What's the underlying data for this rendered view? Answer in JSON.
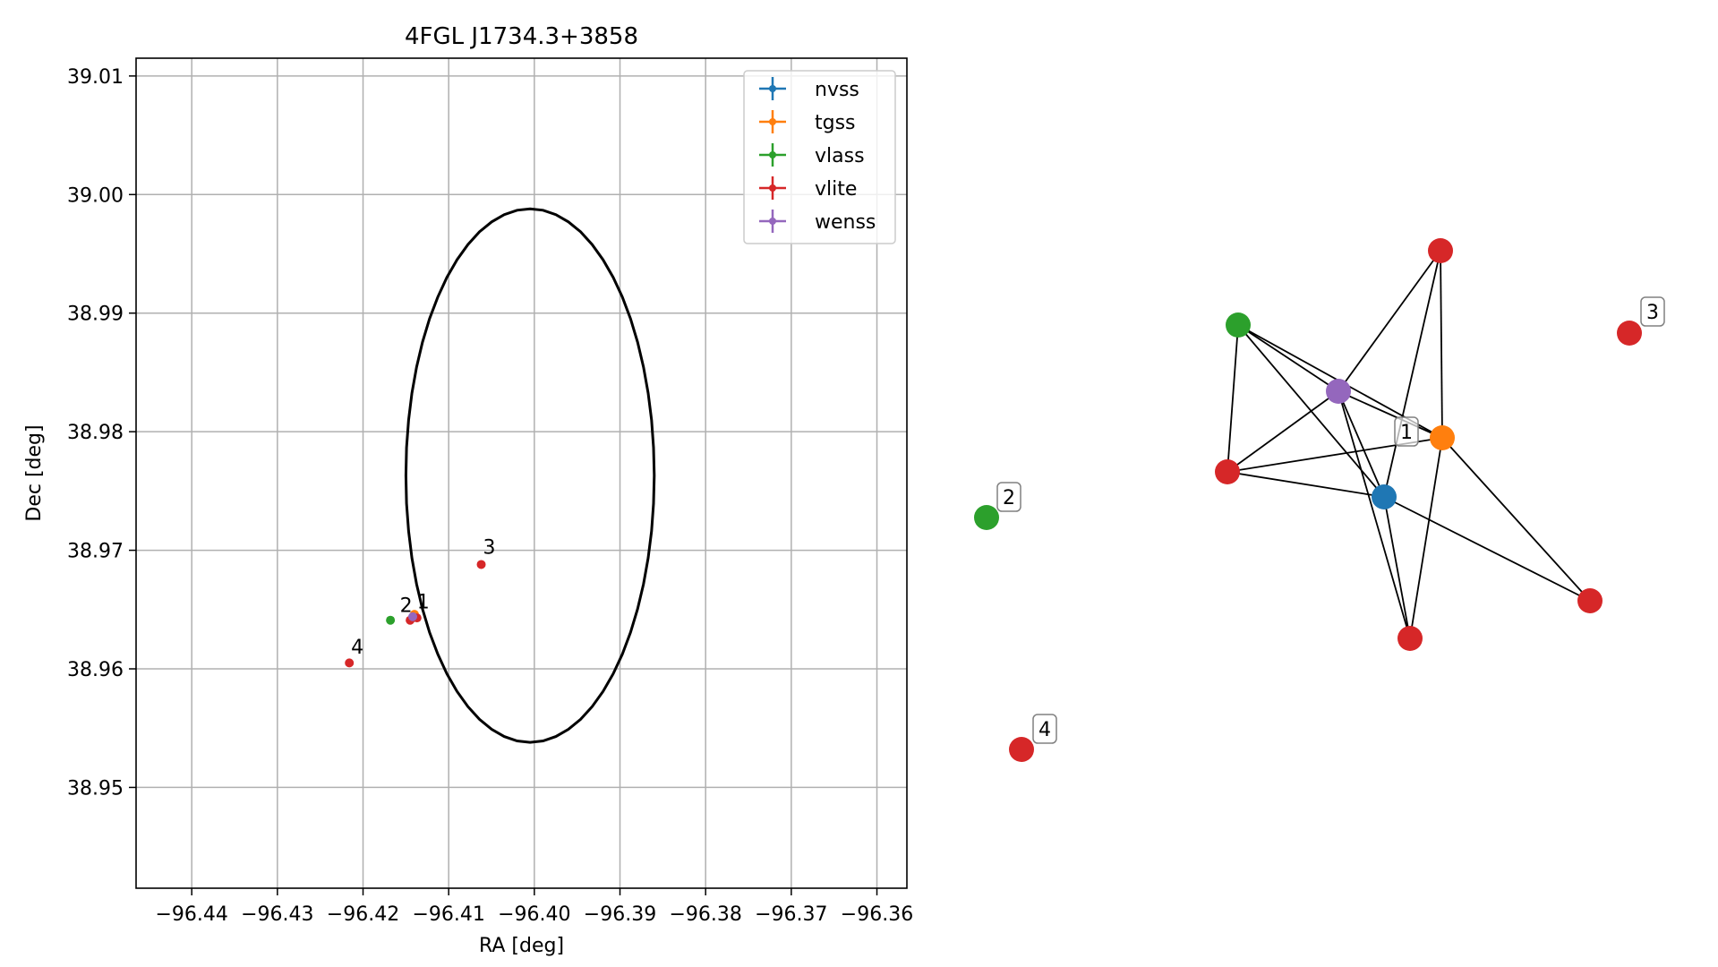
{
  "chart_data": [
    {
      "type": "scatter",
      "title": "4FGL J1734.3+3858",
      "xlabel": "RA [deg]",
      "ylabel": "Dec [deg]",
      "xlim": [
        -96.4465,
        -96.3565
      ],
      "ylim": [
        38.9415,
        39.0115
      ],
      "x_ticks": [
        -96.44,
        -96.43,
        -96.42,
        -96.41,
        -96.4,
        -96.39,
        -96.38,
        -96.37,
        -96.36
      ],
      "x_tick_labels": [
        "−96.44",
        "−96.43",
        "−96.42",
        "−96.41",
        "−96.40",
        "−96.39",
        "−96.38",
        "−96.37",
        "−96.36"
      ],
      "y_ticks": [
        38.95,
        38.96,
        38.97,
        38.98,
        38.99,
        39.0,
        39.01
      ],
      "y_tick_labels": [
        "38.95",
        "38.96",
        "38.97",
        "38.98",
        "38.99",
        "39.00",
        "39.01"
      ],
      "grid": true,
      "legend_position": "top-right",
      "ellipse": {
        "center": [
          -96.4005,
          38.9763
        ],
        "rx": 0.0145,
        "ry": 0.0225,
        "color": "#000000"
      },
      "series": [
        {
          "name": "nvss",
          "color": "#1f77b4",
          "points": [
            [
              -96.4142,
              38.9643
            ]
          ]
        },
        {
          "name": "tgss",
          "color": "#ff7f0e",
          "points": [
            [
              -96.414,
              38.9646
            ]
          ]
        },
        {
          "name": "vlass",
          "color": "#2ca02c",
          "points": [
            [
              -96.4168,
              38.9641
            ]
          ]
        },
        {
          "name": "vlite",
          "color": "#d62728",
          "points": [
            [
              -96.4137,
              38.9643
            ],
            [
              -96.4145,
              38.9641
            ],
            [
              -96.4062,
              38.9688
            ],
            [
              -96.4216,
              38.9605
            ]
          ]
        },
        {
          "name": "wenss",
          "color": "#9467bd",
          "points": [
            [
              -96.4142,
              38.9644
            ]
          ]
        }
      ],
      "annotations": [
        {
          "text": "1",
          "x": -96.4137,
          "y": 38.9651
        },
        {
          "text": "2",
          "x": -96.4157,
          "y": 38.9648
        },
        {
          "text": "3",
          "x": -96.406,
          "y": 38.9697
        },
        {
          "text": "4",
          "x": -96.4214,
          "y": 38.9613
        }
      ]
    },
    {
      "type": "network",
      "nodes": [
        {
          "id": "vlite_top",
          "color": "#d62728"
        },
        {
          "id": "vlass",
          "color": "#2ca02c"
        },
        {
          "id": "wenss",
          "color": "#9467bd"
        },
        {
          "id": "tgss",
          "color": "#ff7f0e"
        },
        {
          "id": "vlite_left",
          "color": "#d62728"
        },
        {
          "id": "nvss",
          "color": "#1f77b4"
        },
        {
          "id": "vlite_right",
          "color": "#d62728"
        },
        {
          "id": "vlite_bottom",
          "color": "#d62728"
        },
        {
          "id": "iso_3",
          "color": "#d62728"
        },
        {
          "id": "iso_2",
          "color": "#2ca02c"
        },
        {
          "id": "iso_4",
          "color": "#d62728"
        }
      ],
      "edges": [
        [
          "vlass",
          "wenss"
        ],
        [
          "vlass",
          "tgss"
        ],
        [
          "vlass",
          "nvss"
        ],
        [
          "vlass",
          "vlite_left"
        ],
        [
          "vlite_top",
          "wenss"
        ],
        [
          "vlite_top",
          "tgss"
        ],
        [
          "vlite_top",
          "nvss"
        ],
        [
          "wenss",
          "vlite_left"
        ],
        [
          "wenss",
          "tgss"
        ],
        [
          "wenss",
          "nvss"
        ],
        [
          "wenss",
          "vlite_bottom"
        ],
        [
          "tgss",
          "vlite_left"
        ],
        [
          "tgss",
          "vlite_right"
        ],
        [
          "tgss",
          "vlite_bottom"
        ],
        [
          "vlite_left",
          "nvss"
        ],
        [
          "nvss",
          "vlite_right"
        ],
        [
          "nvss",
          "vlite_bottom"
        ]
      ],
      "labels": [
        {
          "text": "1",
          "node": "tgss"
        },
        {
          "text": "2",
          "node": "iso_2"
        },
        {
          "text": "3",
          "node": "iso_3"
        },
        {
          "text": "4",
          "node": "iso_4"
        }
      ]
    }
  ]
}
